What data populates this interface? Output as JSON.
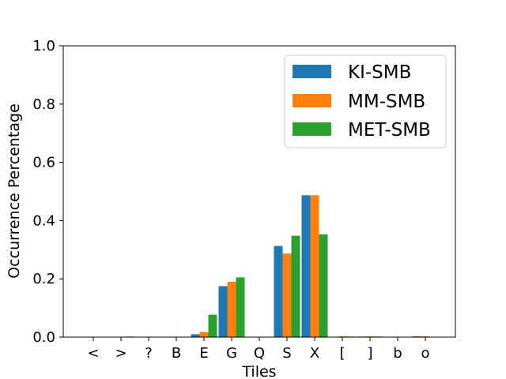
{
  "chart_data": {
    "type": "bar",
    "title": "",
    "xlabel": "Tiles",
    "ylabel": "Occurrence Percentage",
    "ylim": [
      0,
      1.0
    ],
    "yticks": [
      "0.0",
      "0.2",
      "0.4",
      "0.6",
      "0.8",
      "1.0"
    ],
    "categories": [
      "<",
      ">",
      "?",
      "B",
      "E",
      "G",
      "Q",
      "S",
      "X",
      "[",
      "]",
      "b",
      "o"
    ],
    "series": [
      {
        "name": "KI-SMB",
        "color": "#1f77b4",
        "values": [
          0.0,
          0.0,
          0.0,
          0.0,
          0.01,
          0.175,
          0.0,
          0.313,
          0.487,
          0.0,
          0.002,
          0.0,
          0.003
        ]
      },
      {
        "name": "MM-SMB",
        "color": "#ff7f0e",
        "values": [
          0.0,
          0.0,
          0.0,
          0.0,
          0.018,
          0.19,
          0.0,
          0.287,
          0.487,
          0.003,
          0.003,
          0.0,
          0.003
        ]
      },
      {
        "name": "MET-SMB",
        "color": "#2ca02c",
        "values": [
          0.0,
          0.002,
          0.0,
          0.0,
          0.077,
          0.205,
          0.0,
          0.348,
          0.353,
          0.002,
          0.002,
          0.0,
          0.001
        ]
      }
    ],
    "legend_position": "top-right",
    "grid": false
  }
}
